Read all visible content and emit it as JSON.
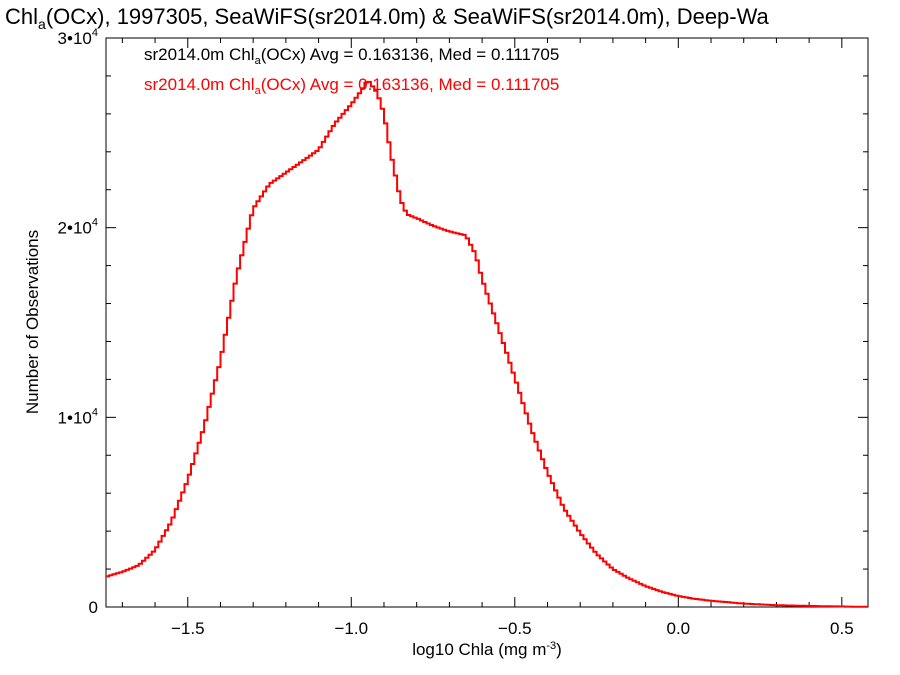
{
  "chart_data": {
    "type": "line",
    "title": {
      "pre": "Chl",
      "sub": "a",
      "post": "(OCx), 1997305, SeaWiFS(sr2014.0m) & SeaWiFS(sr2014.0m), Deep-Wa"
    },
    "xlabel": {
      "pre": "log10 Chla (mg m",
      "sup": "-3",
      "post": ")"
    },
    "ylabel": "Number of Observations",
    "xlim": [
      -1.75,
      0.58
    ],
    "ylim": [
      0,
      30000
    ],
    "x_ticks": [
      {
        "value": -1.5,
        "label": "−1.5"
      },
      {
        "value": -1.0,
        "label": "−1.0"
      },
      {
        "value": -0.5,
        "label": "−0.5"
      },
      {
        "value": 0.0,
        "label": "0.0"
      },
      {
        "value": 0.5,
        "label": "0.5"
      }
    ],
    "y_ticks": [
      {
        "value": 0,
        "base": "0",
        "exp": ""
      },
      {
        "value": 10000,
        "base": "1•10",
        "exp": "4"
      },
      {
        "value": 20000,
        "base": "2•10",
        "exp": "4"
      },
      {
        "value": 30000,
        "base": "3•10",
        "exp": "4"
      }
    ],
    "legend": [
      {
        "pre": "sr2014.0m Chl",
        "sub": "a",
        "post": "(OCx) Avg = 0.163136, Med = 0.111705",
        "color": "#000000"
      },
      {
        "pre": "sr2014.0m Chl",
        "sub": "a",
        "post": "(OCx) Avg = 0.163136, Med = 0.111705",
        "color": "#ff0000"
      }
    ],
    "legend_position": "top-left",
    "series": [
      {
        "color": "#ff0000",
        "x": [
          -1.75,
          -1.7,
          -1.65,
          -1.6,
          -1.55,
          -1.5,
          -1.45,
          -1.4,
          -1.35,
          -1.3,
          -1.25,
          -1.2,
          -1.15,
          -1.1,
          -1.05,
          -1.0,
          -0.97,
          -0.95,
          -0.92,
          -0.9,
          -0.88,
          -0.85,
          -0.83,
          -0.8,
          -0.75,
          -0.7,
          -0.65,
          -0.62,
          -0.6,
          -0.55,
          -0.5,
          -0.45,
          -0.4,
          -0.35,
          -0.3,
          -0.25,
          -0.2,
          -0.15,
          -0.1,
          -0.05,
          0.0,
          0.05,
          0.1,
          0.2,
          0.3,
          0.4,
          0.5,
          0.58
        ],
        "y": [
          1600,
          1850,
          2200,
          3000,
          4500,
          6700,
          9500,
          13000,
          17500,
          21000,
          22300,
          22900,
          23500,
          24100,
          25500,
          26500,
          27200,
          27800,
          27100,
          26000,
          24000,
          21500,
          20700,
          20500,
          20100,
          19800,
          19600,
          18600,
          17300,
          14700,
          12100,
          9400,
          7100,
          5200,
          3900,
          2800,
          2000,
          1500,
          1100,
          800,
          580,
          430,
          330,
          180,
          95,
          55,
          25,
          10
        ]
      }
    ]
  }
}
